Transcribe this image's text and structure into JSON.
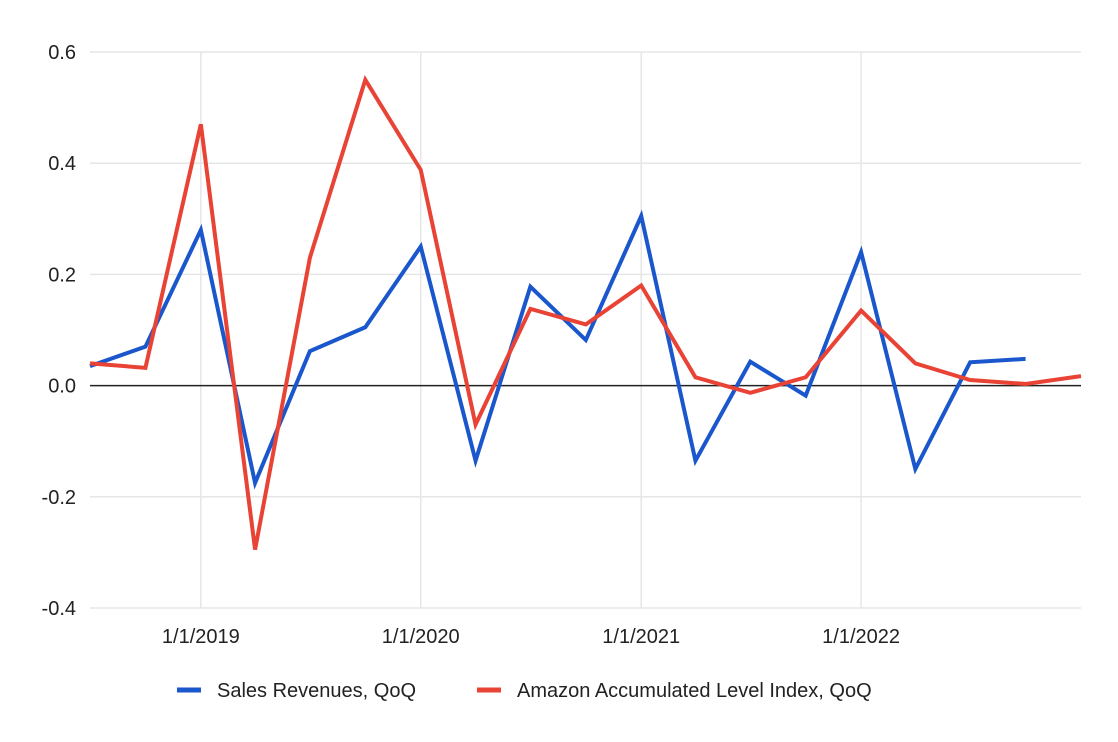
{
  "chart_data": {
    "type": "line",
    "title": "",
    "xlabel": "",
    "ylabel": "",
    "ylim": [
      -0.4,
      0.6
    ],
    "yticks": [
      0.6,
      0.4,
      0.2,
      0.0,
      -0.2,
      -0.4
    ],
    "ytick_labels": [
      "0.6",
      "0.4",
      "0.2",
      "0.0",
      "-0.2",
      "-0.4"
    ],
    "x_start": "2018-07-01",
    "x_end": "2023-01-01",
    "xticks": [
      {
        "date": "2019-01-01",
        "label": "1/1/2019"
      },
      {
        "date": "2020-01-01",
        "label": "1/1/2020"
      },
      {
        "date": "2021-01-01",
        "label": "1/1/2021"
      },
      {
        "date": "2022-01-01",
        "label": "1/1/2022"
      }
    ],
    "x": [
      "2018-07-01",
      "2018-10-01",
      "2019-01-01",
      "2019-04-01",
      "2019-07-01",
      "2019-10-01",
      "2020-01-01",
      "2020-04-01",
      "2020-07-01",
      "2020-10-01",
      "2021-01-01",
      "2021-04-01",
      "2021-07-01",
      "2021-10-01",
      "2022-01-01",
      "2022-04-01",
      "2022-07-01",
      "2022-10-01",
      "2023-01-01"
    ],
    "legend_position": "bottom",
    "series": [
      {
        "name": "Sales Revenues, QoQ",
        "color": "#1a56cc",
        "values": [
          0.035,
          0.07,
          0.28,
          -0.175,
          0.062,
          0.105,
          0.25,
          -0.135,
          0.178,
          0.082,
          0.305,
          -0.135,
          0.043,
          -0.018,
          0.24,
          -0.15,
          0.042,
          0.048,
          null
        ]
      },
      {
        "name": "Amazon Accumulated Level Index, QoQ",
        "color": "#e84335",
        "values": [
          0.04,
          0.032,
          0.47,
          -0.295,
          0.23,
          0.55,
          0.388,
          -0.07,
          0.138,
          0.11,
          0.18,
          0.015,
          -0.013,
          0.015,
          0.135,
          0.04,
          0.01,
          0.003,
          0.017
        ]
      }
    ]
  }
}
